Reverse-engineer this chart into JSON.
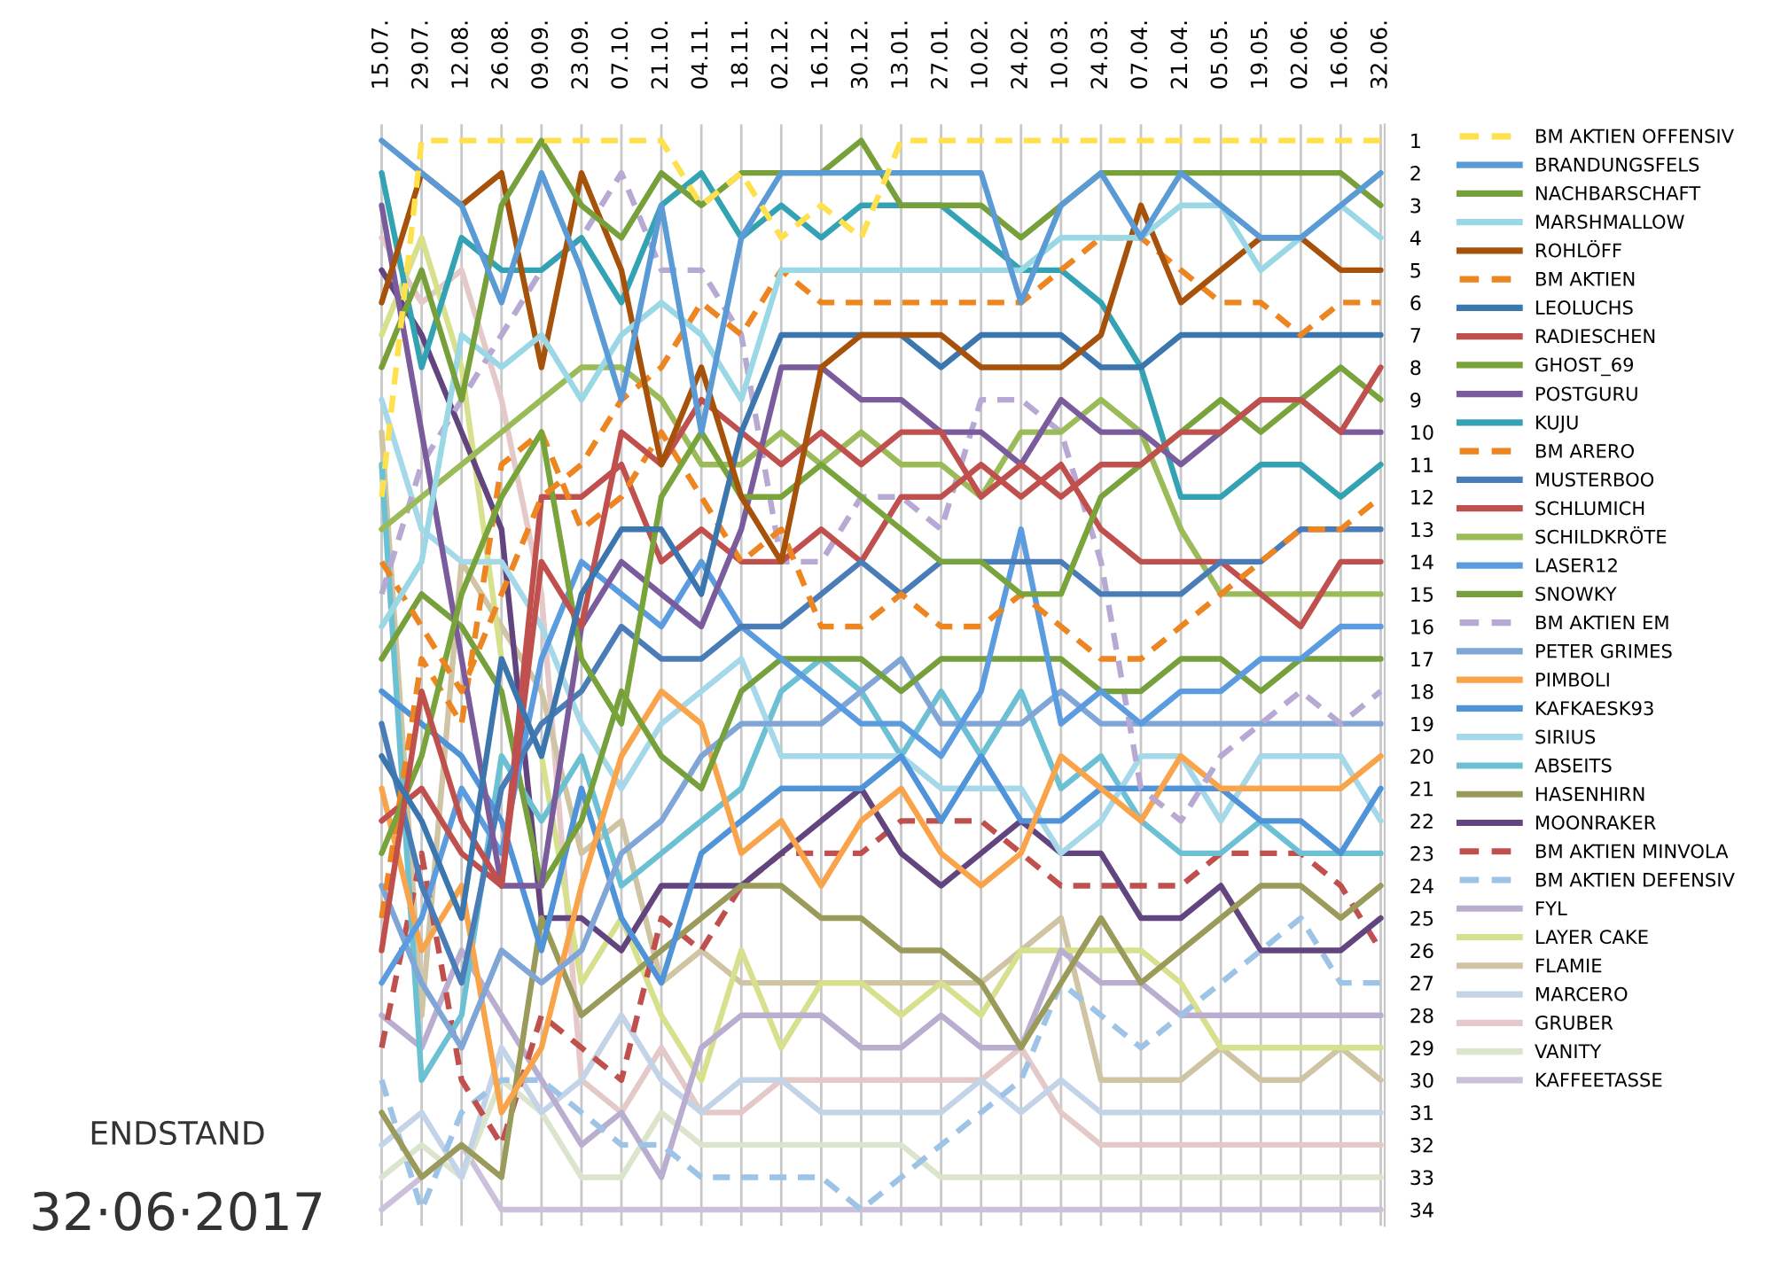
{
  "chart_data": {
    "type": "line",
    "categories": [
      "15.07.",
      "29.07.",
      "12.08.",
      "26.08.",
      "09.09.",
      "23.09.",
      "07.10.",
      "21.10.",
      "04.11.",
      "18.11.",
      "02.12.",
      "16.12.",
      "30.12.",
      "13.01.",
      "27.01.",
      "10.02.",
      "24.02.",
      "10.03.",
      "24.03.",
      "07.04.",
      "21.04.",
      "05.05.",
      "19.05.",
      "02.06.",
      "16.06.",
      "32.06."
    ],
    "ylim": [
      34.5,
      0.5
    ],
    "yticks": [
      1,
      2,
      3,
      4,
      5,
      6,
      7,
      8,
      9,
      10,
      11,
      12,
      13,
      14,
      15,
      16,
      17,
      18,
      19,
      20,
      21,
      22,
      23,
      24,
      25,
      26,
      27,
      28,
      29,
      30,
      31,
      32,
      33,
      34
    ],
    "grid": "x",
    "legend": "right",
    "marker": "none",
    "annotations": [
      "ENDSTAND",
      "32·06·2017"
    ],
    "series": [
      {
        "name": "BM AKTIEN OFFENSIV",
        "color": "#ffe04d",
        "line_style": "dashed",
        "values": [
          12,
          1,
          1,
          1,
          1,
          1,
          1,
          1,
          3,
          2,
          4,
          3,
          4,
          1,
          1,
          1,
          1,
          1,
          1,
          1,
          1,
          1,
          1,
          1,
          1,
          1
        ]
      },
      {
        "name": "BRANDUNGSFELS",
        "color": "#5b9bd5",
        "line_style": "solid",
        "values": [
          1,
          2,
          3,
          6,
          2,
          5,
          9,
          3,
          10,
          4,
          2,
          2,
          2,
          2,
          2,
          2,
          6,
          3,
          2,
          4,
          2,
          3,
          4,
          4,
          3,
          2
        ]
      },
      {
        "name": "NACHBARSCHAFT",
        "color": "#77a03b",
        "line_style": "solid",
        "values": [
          8,
          5,
          9,
          3,
          1,
          3,
          4,
          2,
          3,
          2,
          2,
          2,
          1,
          3,
          3,
          3,
          4,
          3,
          2,
          2,
          2,
          2,
          2,
          2,
          2,
          3
        ]
      },
      {
        "name": "MARSHMALLOW",
        "color": "#9ad8e6",
        "line_style": "solid",
        "values": [
          16,
          14,
          7,
          8,
          7,
          9,
          7,
          6,
          7,
          9,
          5,
          5,
          5,
          5,
          5,
          5,
          5,
          4,
          4,
          4,
          3,
          3,
          5,
          4,
          3,
          4
        ]
      },
      {
        "name": "ROHLÖFF",
        "color": "#a6520a",
        "line_style": "solid",
        "values": [
          6,
          2,
          3,
          2,
          8,
          2,
          5,
          11,
          8,
          12,
          14,
          8,
          7,
          7,
          7,
          8,
          8,
          8,
          7,
          3,
          6,
          5,
          4,
          4,
          5,
          5
        ]
      },
      {
        "name": "BM AKTIEN",
        "color": "#ed8521",
        "line_style": "dashed",
        "values": [
          14,
          16,
          18,
          15,
          12,
          11,
          9,
          8,
          6,
          7,
          5,
          6,
          6,
          6,
          6,
          6,
          6,
          5,
          4,
          4,
          5,
          6,
          6,
          7,
          6,
          6
        ]
      },
      {
        "name": "LEOLUCHS",
        "color": "#3b76af",
        "line_style": "solid",
        "values": [
          20,
          22,
          25,
          17,
          20,
          15,
          13,
          13,
          15,
          10,
          7,
          7,
          7,
          7,
          8,
          7,
          7,
          7,
          8,
          8,
          7,
          7,
          7,
          7,
          7,
          7
        ]
      },
      {
        "name": "RADIESCHEN",
        "color": "#c0504d",
        "line_style": "solid",
        "values": [
          26,
          18,
          22,
          24,
          14,
          16,
          10,
          11,
          9,
          10,
          11,
          10,
          11,
          10,
          10,
          12,
          11,
          12,
          11,
          11,
          10,
          10,
          9,
          9,
          10,
          8
        ]
      },
      {
        "name": "GHOST_69",
        "color": "#79a33b",
        "line_style": "solid",
        "values": [
          23,
          20,
          15,
          12,
          10,
          17,
          19,
          12,
          10,
          12,
          12,
          11,
          12,
          13,
          14,
          14,
          15,
          15,
          12,
          11,
          10,
          9,
          10,
          9,
          8,
          9
        ]
      },
      {
        "name": "POSTGURU",
        "color": "#7a5c9c",
        "line_style": "solid",
        "values": [
          3,
          10,
          17,
          24,
          24,
          16,
          14,
          15,
          16,
          13,
          8,
          8,
          9,
          9,
          10,
          10,
          11,
          9,
          10,
          10,
          11,
          10,
          9,
          9,
          10,
          10
        ]
      },
      {
        "name": "KUJU",
        "color": "#33a3b3",
        "line_style": "solid",
        "values": [
          2,
          8,
          4,
          5,
          5,
          4,
          6,
          3,
          2,
          4,
          3,
          4,
          3,
          3,
          3,
          4,
          5,
          5,
          6,
          8,
          12,
          12,
          11,
          11,
          12,
          11
        ]
      },
      {
        "name": "BM ARERO",
        "color": "#ed8521",
        "line_style": "dashed",
        "values": [
          25,
          17,
          19,
          11,
          10,
          13,
          12,
          10,
          12,
          14,
          13,
          16,
          16,
          15,
          16,
          16,
          15,
          16,
          17,
          17,
          16,
          15,
          14,
          13,
          13,
          12
        ]
      },
      {
        "name": "MUSTERBOO",
        "color": "#4a7db8",
        "line_style": "solid",
        "values": [
          19,
          24,
          27,
          21,
          19,
          18,
          16,
          17,
          17,
          16,
          16,
          15,
          14,
          15,
          14,
          14,
          14,
          14,
          15,
          15,
          15,
          14,
          14,
          13,
          13,
          13
        ]
      },
      {
        "name": "SCHLUMICH",
        "color": "#c0504d",
        "line_style": "solid",
        "values": [
          22,
          21,
          23,
          24,
          12,
          12,
          11,
          14,
          13,
          14,
          14,
          13,
          14,
          12,
          12,
          11,
          12,
          11,
          13,
          14,
          14,
          14,
          15,
          16,
          14,
          14
        ]
      },
      {
        "name": "SCHILDKRÖTE",
        "color": "#9bbb59",
        "line_style": "solid",
        "values": [
          13,
          12,
          11,
          10,
          9,
          8,
          8,
          9,
          11,
          11,
          10,
          11,
          10,
          11,
          11,
          12,
          10,
          10,
          9,
          10,
          13,
          15,
          15,
          15,
          15,
          15
        ]
      },
      {
        "name": "LASER12",
        "color": "#5b9be0",
        "line_style": "solid",
        "values": [
          27,
          25,
          21,
          23,
          17,
          14,
          15,
          16,
          14,
          16,
          17,
          18,
          19,
          19,
          20,
          18,
          13,
          19,
          18,
          19,
          18,
          18,
          17,
          17,
          16,
          16
        ]
      },
      {
        "name": "SNOWKY",
        "color": "#76a03c",
        "line_style": "solid",
        "values": [
          17,
          15,
          16,
          18,
          24,
          22,
          18,
          20,
          21,
          18,
          17,
          17,
          17,
          18,
          17,
          17,
          17,
          17,
          18,
          18,
          17,
          17,
          18,
          17,
          17,
          17
        ]
      },
      {
        "name": "BM AKTIEN EM",
        "color": "#b7a9d3",
        "line_style": "dashed",
        "values": [
          15,
          11,
          9,
          7,
          5,
          4,
          2,
          5,
          5,
          7,
          14,
          14,
          12,
          12,
          13,
          9,
          9,
          10,
          14,
          21,
          22,
          20,
          19,
          18,
          19,
          18
        ]
      },
      {
        "name": "PETER GRIMES",
        "color": "#7fa6d6",
        "line_style": "solid",
        "values": [
          24,
          27,
          29,
          26,
          27,
          26,
          23,
          22,
          20,
          19,
          19,
          19,
          18,
          17,
          19,
          19,
          19,
          18,
          19,
          19,
          19,
          19,
          19,
          19,
          19,
          19
        ]
      },
      {
        "name": "PIMBOLI",
        "color": "#f9a44a",
        "line_style": "solid",
        "values": [
          21,
          26,
          24,
          31,
          29,
          24,
          20,
          18,
          19,
          23,
          22,
          24,
          22,
          21,
          23,
          24,
          23,
          20,
          21,
          22,
          20,
          21,
          21,
          21,
          21,
          20
        ]
      },
      {
        "name": "KAFKAESK93",
        "color": "#4f93d8",
        "line_style": "solid",
        "values": [
          18,
          19,
          20,
          22,
          26,
          21,
          25,
          27,
          23,
          22,
          21,
          21,
          21,
          20,
          22,
          20,
          22,
          22,
          21,
          21,
          21,
          21,
          22,
          22,
          23,
          21
        ]
      },
      {
        "name": "SIRIUS",
        "color": "#a5d8e8",
        "line_style": "solid",
        "values": [
          9,
          13,
          14,
          14,
          16,
          19,
          21,
          19,
          18,
          17,
          20,
          20,
          20,
          20,
          21,
          21,
          21,
          23,
          22,
          20,
          20,
          22,
          20,
          20,
          20,
          22
        ]
      },
      {
        "name": "ABSEITS",
        "color": "#6cc0d4",
        "line_style": "solid",
        "values": [
          11,
          30,
          28,
          20,
          22,
          20,
          24,
          23,
          22,
          21,
          18,
          17,
          18,
          20,
          18,
          20,
          18,
          21,
          20,
          22,
          23,
          23,
          22,
          23,
          23,
          23
        ]
      },
      {
        "name": "HASENHIRN",
        "color": "#9a9a5a",
        "line_style": "solid",
        "values": [
          31,
          33,
          32,
          33,
          25,
          28,
          27,
          26,
          25,
          24,
          24,
          25,
          25,
          26,
          26,
          27,
          29,
          27,
          25,
          27,
          26,
          25,
          24,
          24,
          25,
          24
        ]
      },
      {
        "name": "MOONRAKER",
        "color": "#62457f",
        "line_style": "solid",
        "values": [
          5,
          7,
          10,
          13,
          25,
          25,
          26,
          24,
          24,
          24,
          23,
          22,
          21,
          23,
          24,
          23,
          22,
          23,
          23,
          25,
          25,
          24,
          26,
          26,
          26,
          25
        ]
      },
      {
        "name": "BM AKTIEN MINVOLA",
        "color": "#c0504d",
        "line_style": "dashed",
        "values": [
          29,
          23,
          30,
          32,
          28,
          29,
          30,
          25,
          26,
          24,
          23,
          23,
          23,
          22,
          22,
          22,
          23,
          24,
          24,
          24,
          24,
          23,
          23,
          23,
          24,
          26
        ]
      },
      {
        "name": "BM AKTIEN DEFENSIV",
        "color": "#9dc3e6",
        "line_style": "dashed",
        "values": [
          30,
          34,
          31,
          30,
          30,
          31,
          32,
          32,
          33,
          33,
          33,
          33,
          34,
          33,
          32,
          31,
          30,
          27,
          28,
          29,
          28,
          27,
          26,
          25,
          27,
          27
        ]
      },
      {
        "name": "FYL",
        "color": "#b9aed0",
        "line_style": "solid",
        "values": [
          28,
          29,
          26,
          28,
          30,
          32,
          31,
          33,
          29,
          28,
          28,
          28,
          29,
          29,
          28,
          29,
          29,
          26,
          27,
          27,
          28,
          28,
          28,
          28,
          28,
          28
        ]
      },
      {
        "name": "LAYER CAKE",
        "color": "#d7e08c",
        "line_style": "solid",
        "values": [
          7,
          4,
          8,
          17,
          20,
          27,
          25,
          28,
          30,
          26,
          29,
          27,
          27,
          28,
          27,
          28,
          26,
          26,
          26,
          26,
          27,
          29,
          29,
          29,
          29,
          29
        ]
      },
      {
        "name": "FLAMIE",
        "color": "#cfc4a4",
        "line_style": "solid",
        "values": [
          10,
          28,
          14,
          16,
          18,
          23,
          22,
          27,
          26,
          27,
          27,
          27,
          27,
          27,
          27,
          27,
          26,
          25,
          30,
          30,
          30,
          29,
          30,
          30,
          29,
          30
        ]
      },
      {
        "name": "MARCERO",
        "color": "#c3d3e8",
        "line_style": "solid",
        "values": [
          32,
          31,
          33,
          29,
          31,
          30,
          28,
          30,
          31,
          30,
          30,
          31,
          31,
          31,
          31,
          30,
          31,
          30,
          31,
          31,
          31,
          31,
          31,
          31,
          31,
          31
        ]
      },
      {
        "name": "GRUBER",
        "color": "#e5c9c9",
        "line_style": "solid",
        "values": [
          4,
          6,
          5,
          9,
          15,
          30,
          31,
          29,
          31,
          31,
          30,
          30,
          30,
          30,
          30,
          30,
          29,
          31,
          32,
          32,
          32,
          32,
          32,
          32,
          32,
          32
        ]
      },
      {
        "name": "VANITY",
        "color": "#dbe4cc",
        "line_style": "solid",
        "values": [
          33,
          32,
          33,
          30,
          31,
          33,
          33,
          31,
          32,
          32,
          32,
          32,
          32,
          32,
          33,
          33,
          33,
          33,
          33,
          33,
          33,
          33,
          33,
          33,
          33,
          33
        ]
      },
      {
        "name": "KAFFEETASSE",
        "color": "#ccc0da",
        "line_style": "solid",
        "values": [
          34,
          33,
          32,
          34,
          34,
          34,
          34,
          34,
          34,
          34,
          34,
          34,
          34,
          34,
          34,
          34,
          34,
          34,
          34,
          34,
          34,
          34,
          34,
          34,
          34,
          34
        ]
      }
    ]
  }
}
